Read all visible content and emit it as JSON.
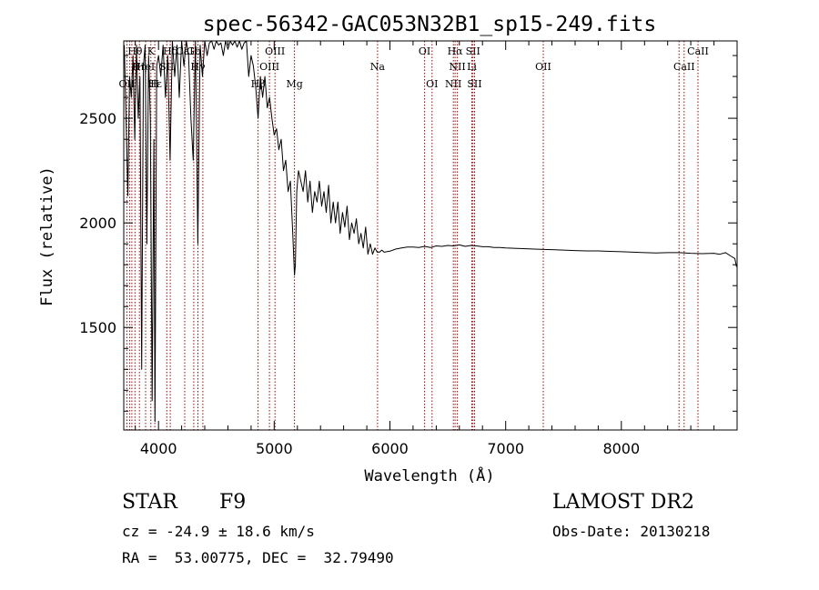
{
  "chart_data": {
    "type": "line",
    "title": "spec-56342-GAC053N32B1_sp15-249.fits",
    "xlabel": "Wavelength (Å)",
    "ylabel": "Flux (relative)",
    "xlim": [
      3700,
      9000
    ],
    "ylim": [
      1010,
      2870
    ],
    "x_ticks": [
      4000,
      5000,
      6000,
      7000,
      8000
    ],
    "x_tick_labels": [
      "4000",
      "5000",
      "6000",
      "7000",
      "8000"
    ],
    "y_ticks": [
      1500,
      2000,
      2500
    ],
    "y_tick_labels": [
      "1500",
      "2000",
      "2500"
    ],
    "series": [
      {
        "name": "spectrum",
        "x": [
          3705,
          3720,
          3735,
          3750,
          3765,
          3780,
          3795,
          3810,
          3825,
          3840,
          3855,
          3870,
          3885,
          3900,
          3915,
          3930,
          3945,
          3960,
          3970,
          3985,
          4000,
          4020,
          4040,
          4060,
          4080,
          4100,
          4120,
          4140,
          4160,
          4180,
          4200,
          4220,
          4240,
          4260,
          4280,
          4300,
          4320,
          4340,
          4360,
          4380,
          4400,
          4420,
          4440,
          4460,
          4480,
          4500,
          4520,
          4540,
          4560,
          4580,
          4600,
          4620,
          4640,
          4660,
          4680,
          4700,
          4720,
          4740,
          4760,
          4780,
          4800,
          4820,
          4840,
          4861,
          4880,
          4900,
          4920,
          4940,
          4960,
          4980,
          5000,
          5020,
          5040,
          5060,
          5080,
          5100,
          5120,
          5140,
          5160,
          5175,
          5183,
          5195,
          5210,
          5230,
          5250,
          5270,
          5290,
          5310,
          5330,
          5350,
          5370,
          5390,
          5410,
          5430,
          5450,
          5470,
          5490,
          5510,
          5530,
          5550,
          5570,
          5590,
          5610,
          5630,
          5650,
          5670,
          5690,
          5710,
          5730,
          5750,
          5770,
          5790,
          5810,
          5830,
          5850,
          5870,
          5890,
          5910,
          5930,
          5950,
          6000,
          6050,
          6100,
          6150,
          6200,
          6250,
          6300,
          6350,
          6400,
          6450,
          6500,
          6550,
          6600,
          6650,
          6700,
          6750,
          6800,
          6850,
          6900,
          6950,
          7000,
          7100,
          7200,
          7300,
          7400,
          7500,
          7600,
          7700,
          7800,
          7900,
          8000,
          8100,
          8200,
          8300,
          8400,
          8500,
          8600,
          8700,
          8800,
          8850,
          8900,
          8950,
          8980,
          8995
        ],
        "values": [
          2850,
          2500,
          2130,
          2700,
          2600,
          2800,
          2400,
          2850,
          2500,
          2700,
          1300,
          2750,
          2850,
          1900,
          2800,
          2500,
          1150,
          2400,
          1050,
          2750,
          2800,
          2700,
          2850,
          2600,
          2800,
          2300,
          2870,
          2700,
          2850,
          2600,
          2870,
          2750,
          2870,
          2800,
          2500,
          2300,
          2870,
          1900,
          2850,
          2700,
          2870,
          2800,
          2860,
          2870,
          2830,
          2870,
          2850,
          2860,
          2800,
          2870,
          2830,
          2870,
          2850,
          2870,
          2840,
          2870,
          2830,
          2860,
          2870,
          2700,
          2800,
          2750,
          2650,
          2500,
          2700,
          2600,
          2700,
          2550,
          2600,
          2500,
          2420,
          2450,
          2350,
          2400,
          2250,
          2300,
          2150,
          2200,
          1950,
          1750,
          1800,
          2150,
          2250,
          2200,
          2150,
          2250,
          2100,
          2200,
          2050,
          2150,
          2100,
          2200,
          2080,
          2150,
          2050,
          2180,
          2000,
          2100,
          2000,
          2100,
          1950,
          2050,
          1980,
          2080,
          1920,
          2000,
          1950,
          2020,
          1900,
          1950,
          1880,
          1980,
          1850,
          1900,
          1850,
          1880,
          1860,
          1860,
          1870,
          1860,
          1865,
          1875,
          1880,
          1885,
          1885,
          1882,
          1888,
          1882,
          1890,
          1888,
          1892,
          1890,
          1895,
          1888,
          1892,
          1890,
          1886,
          1886,
          1882,
          1882,
          1880,
          1878,
          1876,
          1874,
          1872,
          1870,
          1868,
          1866,
          1866,
          1864,
          1862,
          1860,
          1858,
          1856,
          1858,
          1858,
          1855,
          1853,
          1855,
          1850,
          1858,
          1840,
          1830,
          1790
        ]
      }
    ],
    "spectral_lines": [
      {
        "name": "Hθ",
        "x": 3797,
        "row": 0
      },
      {
        "name": "K",
        "x": 3934,
        "row": 0
      },
      {
        "name": "Hδ",
        "x": 4102,
        "row": 0
      },
      {
        "name": "CaI",
        "x": 4227,
        "row": 0
      },
      {
        "name": "Gb",
        "x": 4305,
        "row": 0
      },
      {
        "name": "OIII",
        "x": 5007,
        "row": 0
      },
      {
        "name": "OI",
        "x": 6300,
        "row": 0
      },
      {
        "name": "Hα",
        "x": 6563,
        "row": 0
      },
      {
        "name": "SII",
        "x": 6717,
        "row": 0
      },
      {
        "name": "CaII",
        "x": 8662,
        "row": 0
      },
      {
        "name": "Hη",
        "x": 3835,
        "row": 1
      },
      {
        "name": "HeI",
        "x": 3889,
        "row": 1
      },
      {
        "name": "SII",
        "x": 4072,
        "row": 1
      },
      {
        "name": "Hγ",
        "x": 4341,
        "row": 1
      },
      {
        "name": "OIII",
        "x": 4959,
        "row": 1
      },
      {
        "name": "Na",
        "x": 5893,
        "row": 1
      },
      {
        "name": "NII",
        "x": 6583,
        "row": 1
      },
      {
        "name": "Li",
        "x": 6708,
        "row": 1
      },
      {
        "name": "OII",
        "x": 7325,
        "row": 1
      },
      {
        "name": "CaII",
        "x": 8542,
        "row": 1
      },
      {
        "name": "OII",
        "x": 3727,
        "row": 2
      },
      {
        "name": "Hε",
        "x": 3970,
        "row": 2
      },
      {
        "name": "H",
        "x": 3968,
        "row": 2
      },
      {
        "name": "Hβ",
        "x": 4861,
        "row": 2
      },
      {
        "name": "Mg",
        "x": 5175,
        "row": 2
      },
      {
        "name": "OI",
        "x": 6364,
        "row": 2
      },
      {
        "name": "NII",
        "x": 6548,
        "row": 2
      },
      {
        "name": "SII",
        "x": 6731,
        "row": 2
      }
    ],
    "line_marker_positions": [
      3727,
      3750,
      3770,
      3797,
      3835,
      3889,
      3934,
      3968,
      4072,
      4102,
      4227,
      4305,
      4341,
      4383,
      4861,
      4959,
      5007,
      5175,
      5893,
      6300,
      6364,
      6548,
      6563,
      6583,
      6708,
      6717,
      6731,
      7325,
      8498,
      8542,
      8662
    ]
  },
  "info": {
    "object_class": "STAR",
    "subclass": "F9",
    "survey": "LAMOST DR2",
    "redshift": "cz = -24.9 ± 18.6 km/s",
    "obs_date": "Obs-Date: 20130218",
    "coords": "RA =  53.00775, DEC =  32.79490"
  },
  "colors": {
    "spectrum": "#000000",
    "line_markers": "#aa0000",
    "axes": "#000000"
  }
}
